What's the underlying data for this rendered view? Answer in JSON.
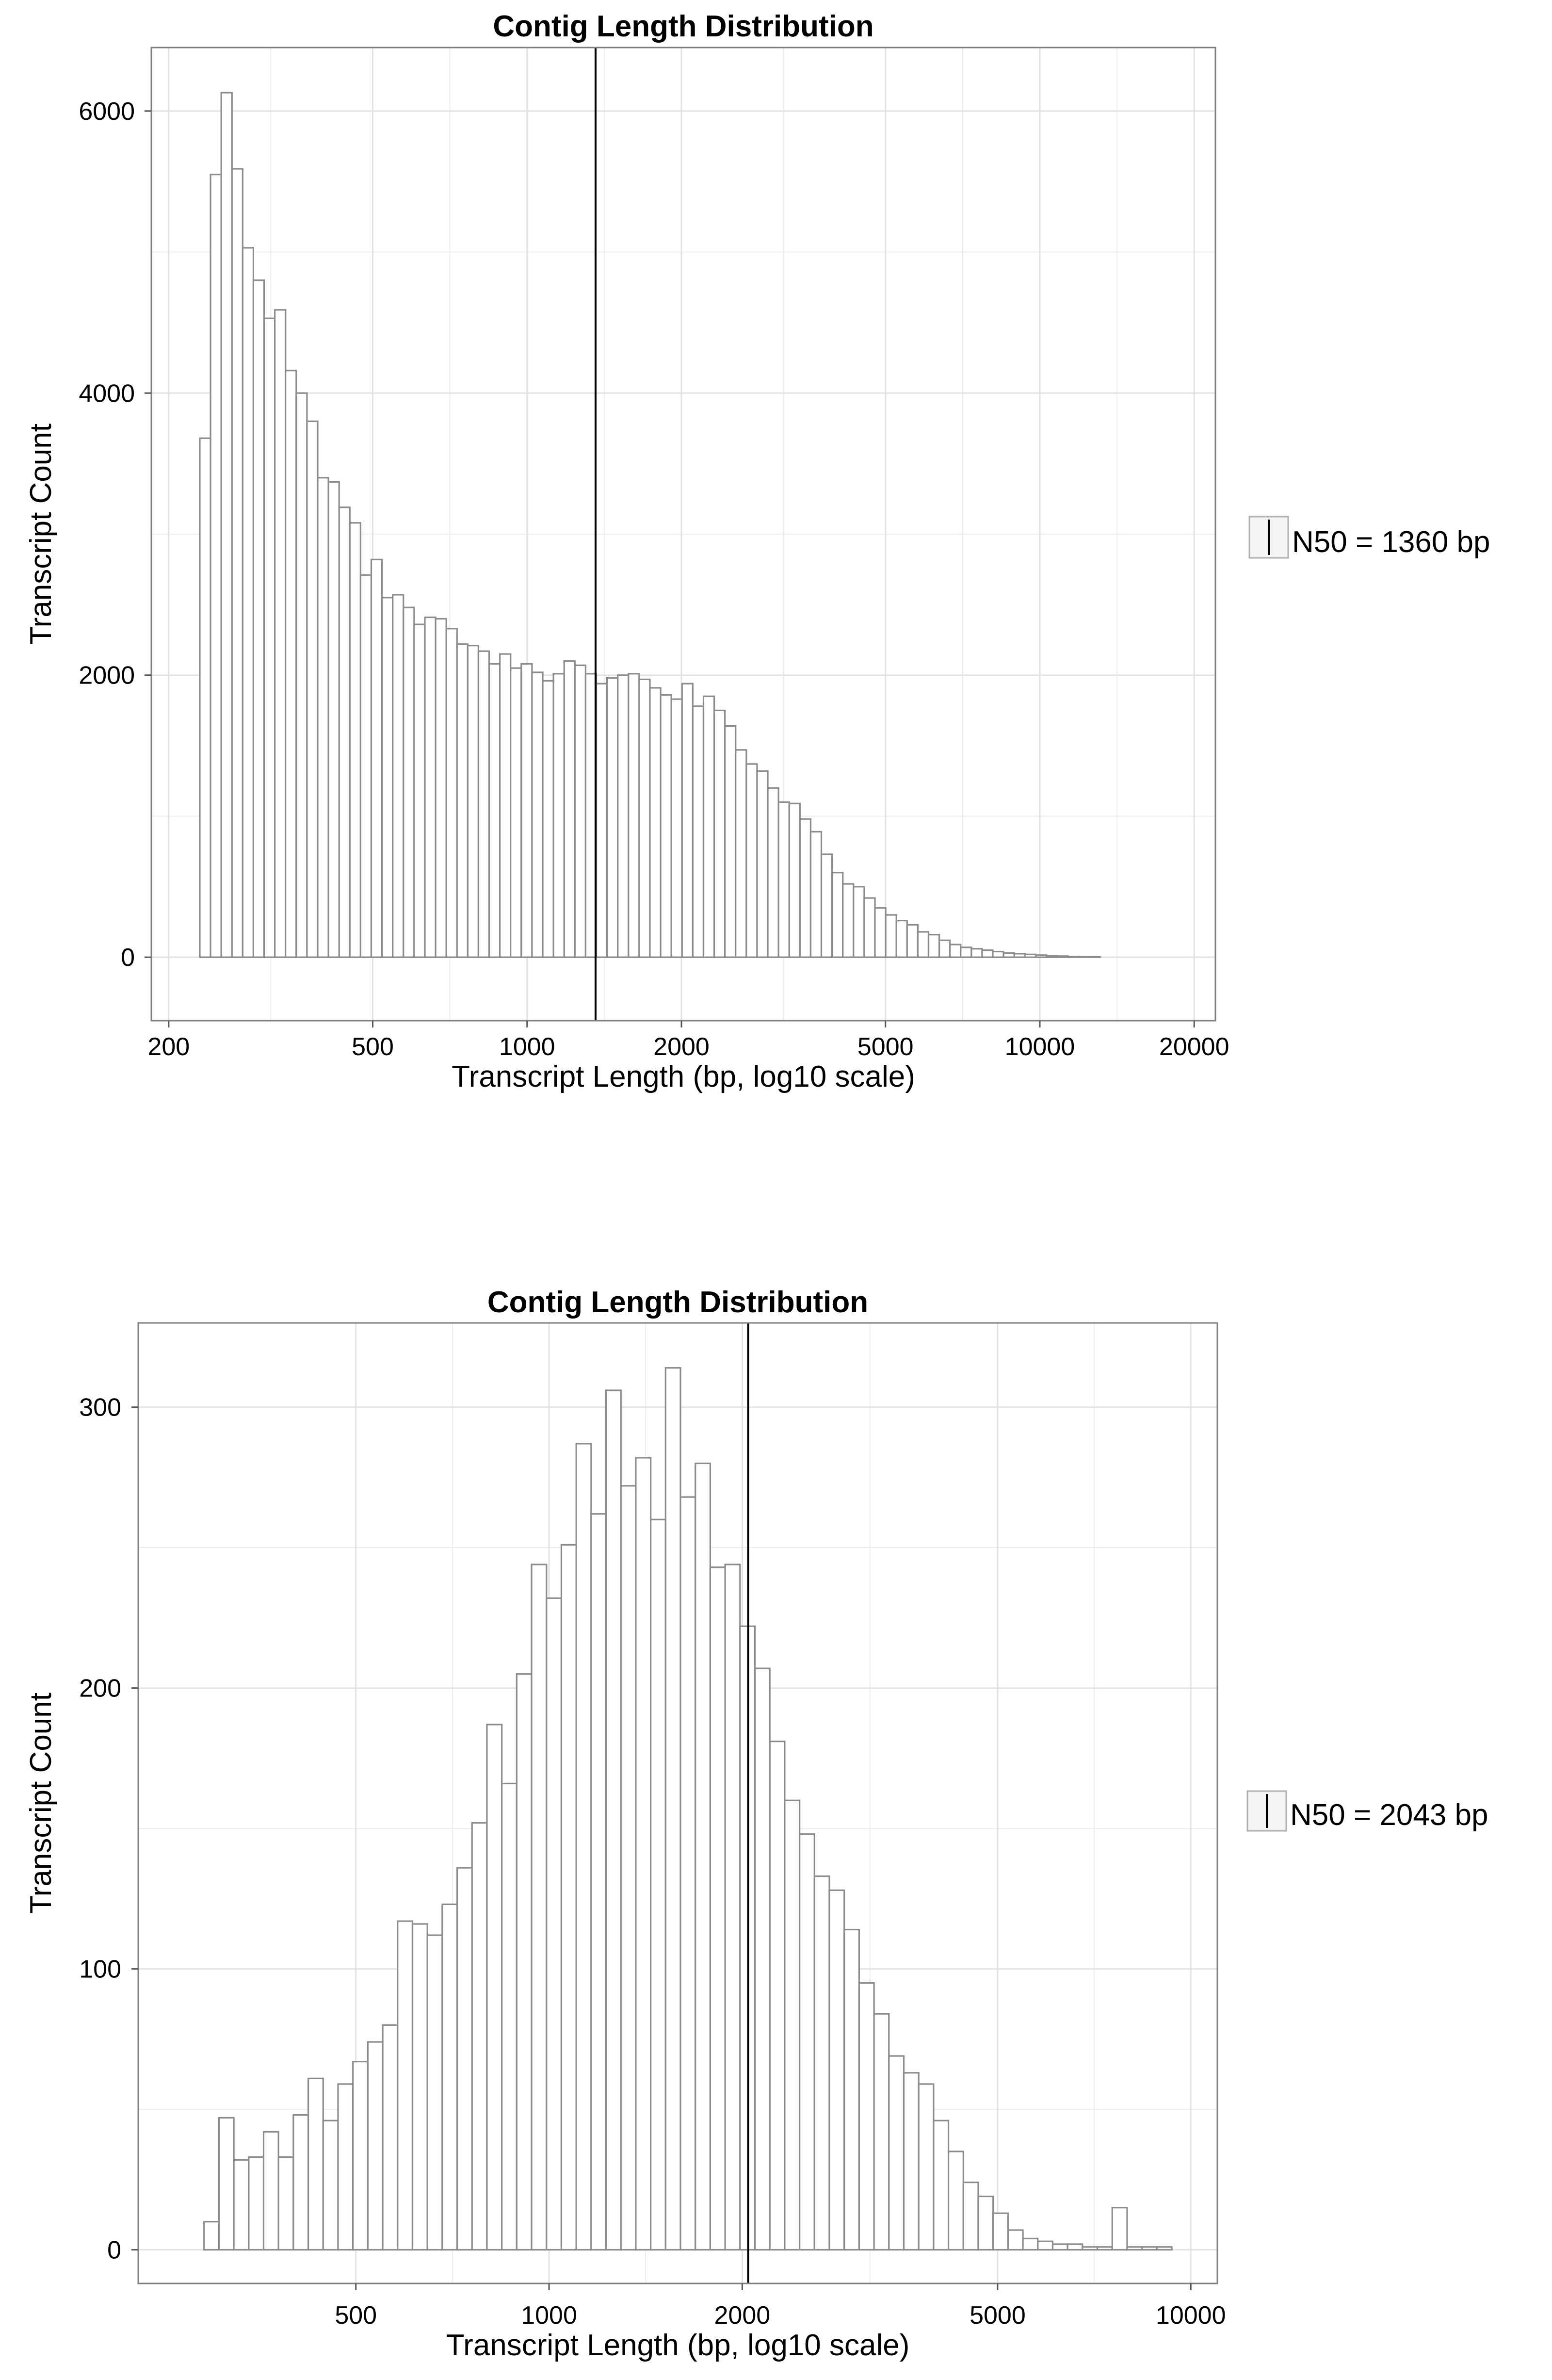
{
  "colors": {
    "bar_fill": "#ffffff",
    "bar_stroke": "#8c8c8c",
    "grid": "#ececec",
    "panel_border": "#7f7f7f",
    "n50_line": "#000000",
    "text": "#000000"
  },
  "chart_data": [
    {
      "type": "bar",
      "title": "Contig Length Distribution",
      "xlabel": "Transcript Length (bp, log10 scale)",
      "ylabel": "Transcript Count",
      "x_scale": "log10",
      "xlim": [
        185,
        22000
      ],
      "ylim": [
        -450,
        6450
      ],
      "x_ticks": [
        200,
        500,
        1000,
        2000,
        5000,
        10000,
        20000
      ],
      "x_tick_labels": [
        "200",
        "500",
        "1000",
        "2000",
        "5000",
        "10000",
        "20000"
      ],
      "y_ticks": [
        0,
        2000,
        4000,
        6000
      ],
      "y_tick_labels": [
        "0",
        "2000",
        "4000",
        "6000"
      ],
      "bin_start": 230,
      "bin_width_log10": 0.0209,
      "n_bins": 84,
      "values": [
        3680,
        5550,
        6130,
        5590,
        5030,
        4800,
        4530,
        4590,
        4160,
        4000,
        3800,
        3400,
        3370,
        3190,
        3080,
        2710,
        2820,
        2550,
        2570,
        2480,
        2360,
        2410,
        2400,
        2330,
        2220,
        2210,
        2170,
        2080,
        2150,
        2050,
        2080,
        2020,
        1960,
        2010,
        2100,
        2070,
        2010,
        1940,
        1980,
        2000,
        2010,
        1970,
        1910,
        1860,
        1830,
        1940,
        1780,
        1850,
        1750,
        1640,
        1470,
        1370,
        1320,
        1200,
        1100,
        1090,
        980,
        890,
        730,
        600,
        520,
        500,
        420,
        350,
        300,
        260,
        230,
        180,
        160,
        120,
        90,
        70,
        60,
        50,
        40,
        30,
        25,
        20,
        15,
        10,
        8,
        5,
        3,
        2
      ],
      "n50": {
        "value": 1360,
        "label": "N50 = 1360 bp"
      }
    },
    {
      "type": "bar",
      "title": "Contig Length Distribution",
      "xlabel": "Transcript Length (bp, log10 scale)",
      "ylabel": "Transcript Count",
      "x_scale": "log10",
      "xlim": [
        229,
        11000
      ],
      "ylim": [
        -12,
        330
      ],
      "x_ticks": [
        500,
        1000,
        2000,
        5000,
        10000
      ],
      "x_tick_labels": [
        "500",
        "1000",
        "2000",
        "5000",
        "10000"
      ],
      "y_ticks": [
        0,
        100,
        200,
        300
      ],
      "y_tick_labels": [
        "0",
        "100",
        "200",
        "300"
      ],
      "bin_start": 290,
      "bin_width_log10": 0.0232,
      "n_bins": 66,
      "values": [
        10,
        47,
        32,
        33,
        42,
        33,
        48,
        61,
        46,
        59,
        67,
        74,
        80,
        117,
        116,
        112,
        123,
        136,
        152,
        187,
        166,
        205,
        244,
        232,
        251,
        287,
        262,
        306,
        272,
        282,
        260,
        314,
        268,
        280,
        243,
        244,
        222,
        207,
        181,
        160,
        148,
        133,
        128,
        114,
        95,
        84,
        69,
        63,
        59,
        46,
        35,
        24,
        19,
        13,
        7,
        4,
        3,
        2,
        2,
        1,
        1,
        15,
        1,
        1,
        1,
        0
      ],
      "n50": {
        "value": 2043,
        "label": "N50 = 2043 bp"
      }
    }
  ]
}
